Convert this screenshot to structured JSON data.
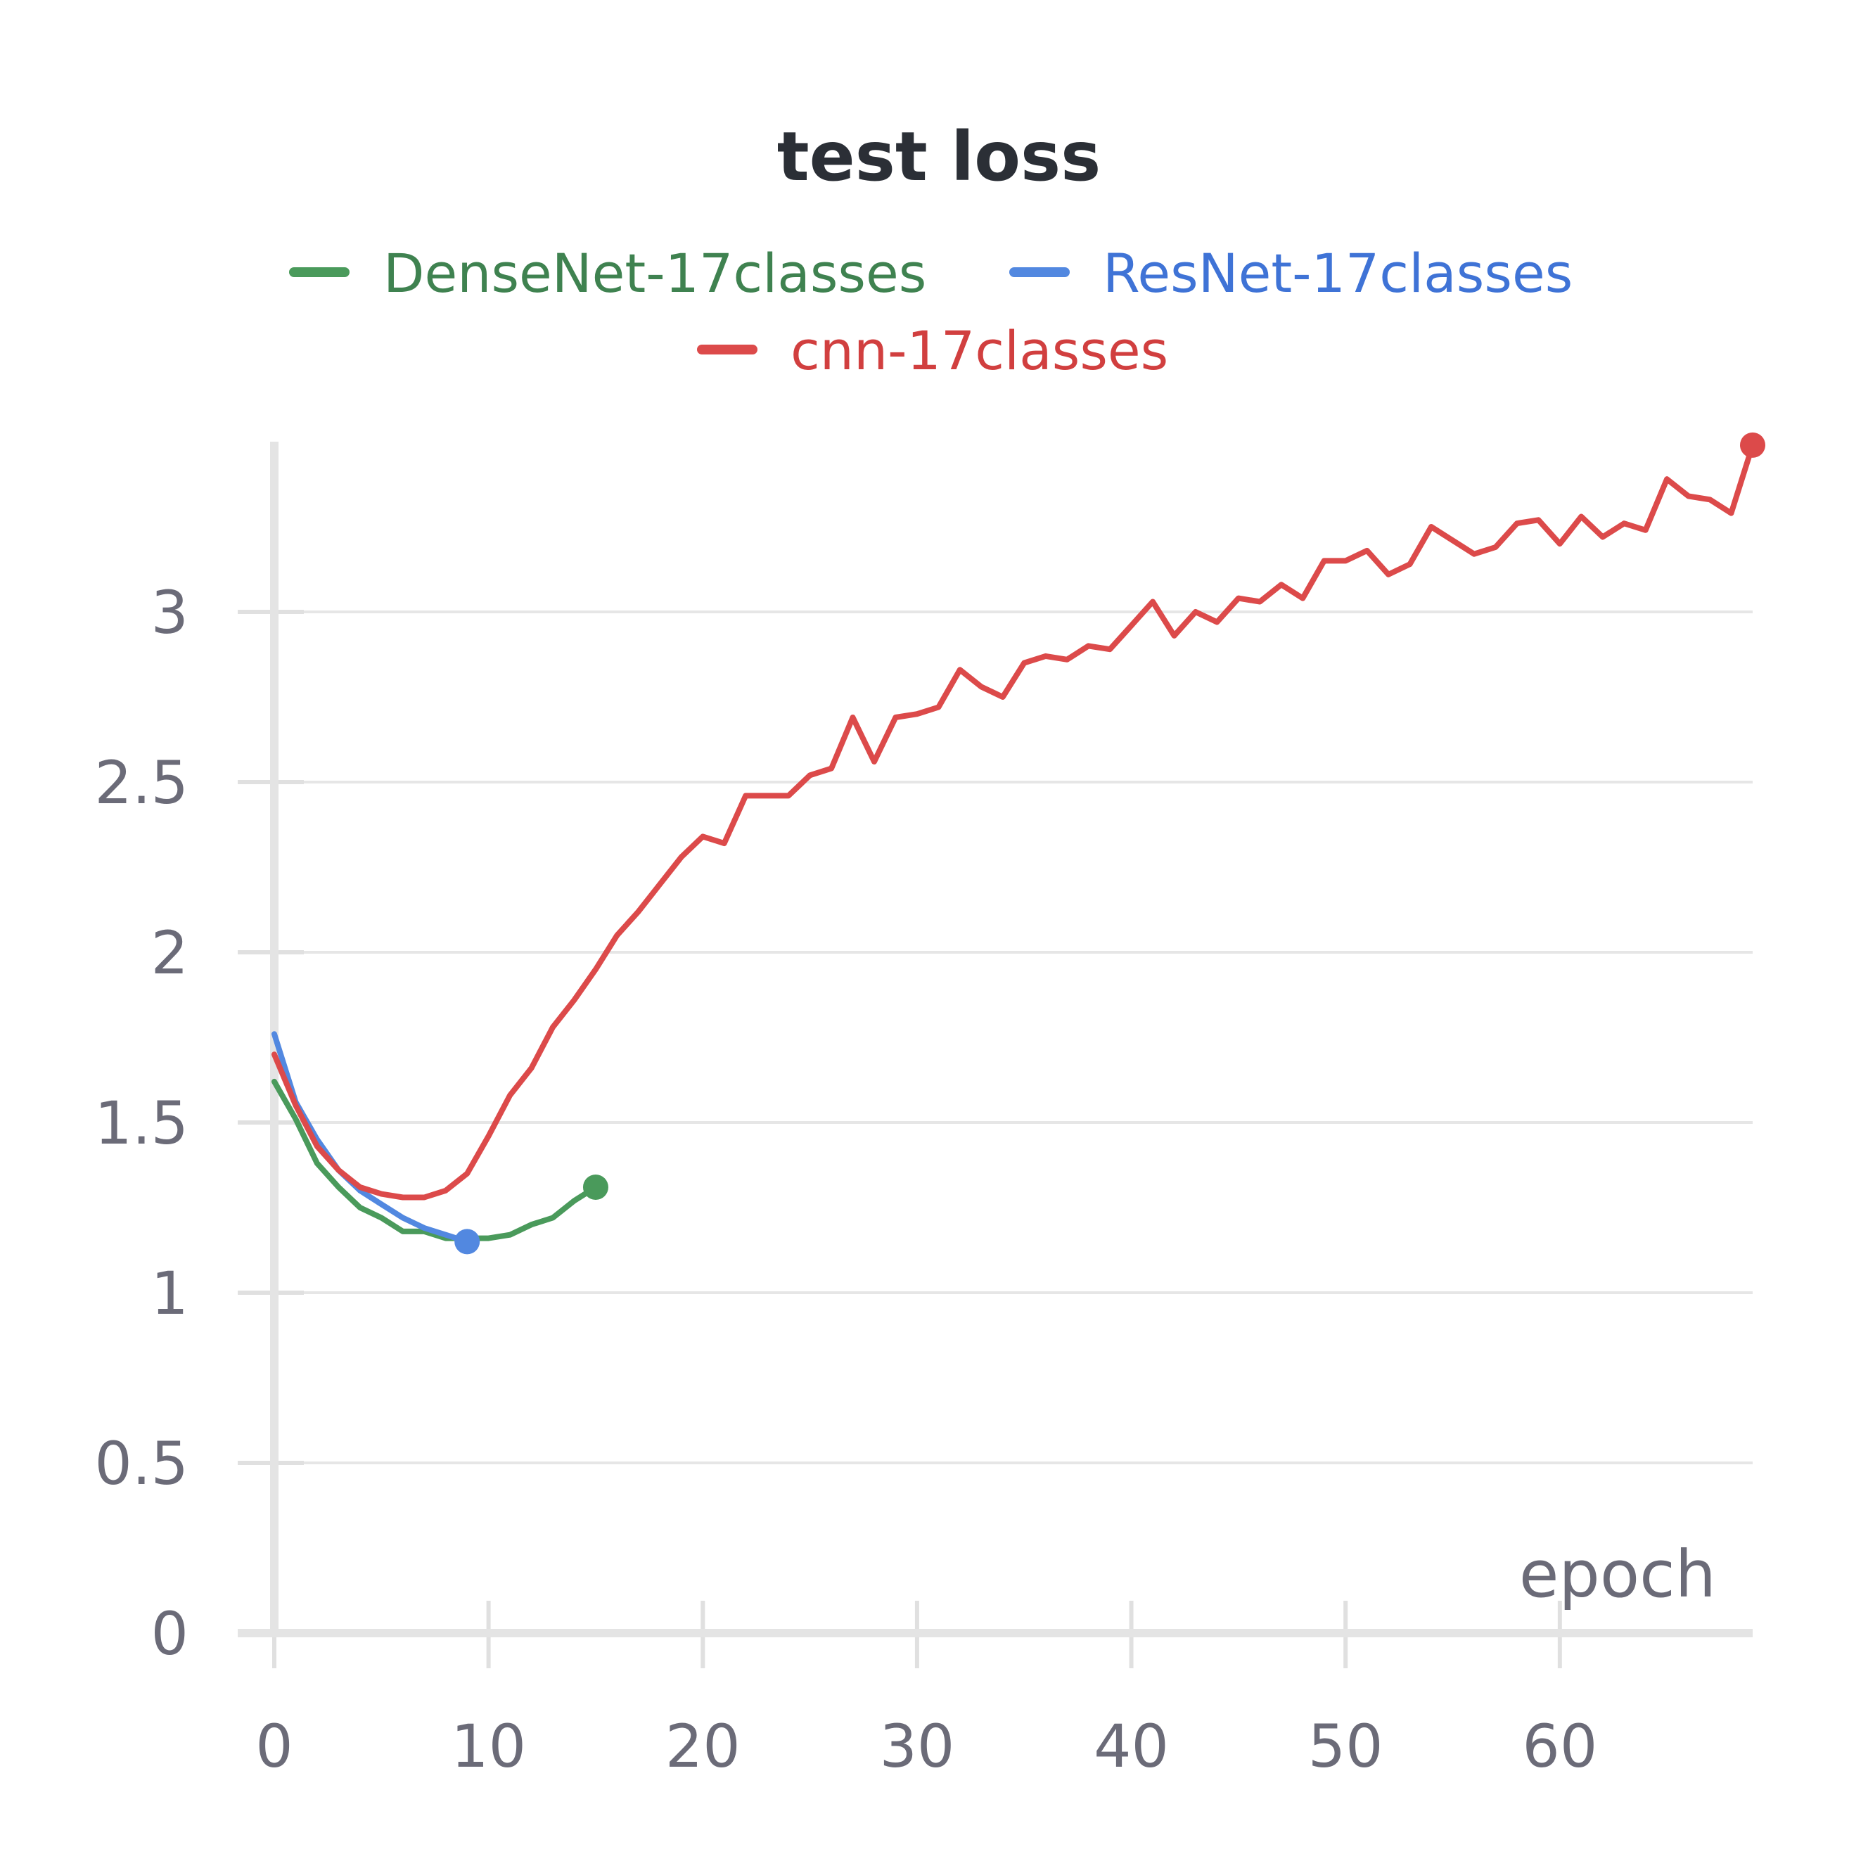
{
  "chart_data": {
    "type": "line",
    "title": "test loss",
    "xlabel": "epoch",
    "ylabel": "",
    "xlim": [
      0,
      69
    ],
    "ylim": [
      0,
      3.5
    ],
    "x_ticks": [
      "0",
      "10",
      "20",
      "30",
      "40",
      "50",
      "60"
    ],
    "y_ticks": [
      "0",
      "0.5",
      "1",
      "1.5",
      "2",
      "2.5",
      "3"
    ],
    "grid": true,
    "legend_position": "top",
    "series": [
      {
        "name": "DenseNet-17classes",
        "color": "#4a9a5b",
        "text_color": "#3f8250",
        "x": [
          0,
          1,
          2,
          3,
          4,
          5,
          6,
          7,
          8,
          9,
          10,
          11,
          12,
          13,
          14,
          15
        ],
        "y": [
          1.62,
          1.51,
          1.38,
          1.31,
          1.25,
          1.22,
          1.18,
          1.18,
          1.16,
          1.16,
          1.16,
          1.17,
          1.2,
          1.22,
          1.27,
          1.31
        ]
      },
      {
        "name": "ResNet-17classes",
        "color": "#5288e0",
        "text_color": "#3f73d6",
        "x": [
          0,
          1,
          2,
          3,
          4,
          5,
          6,
          7,
          8,
          9
        ],
        "y": [
          1.76,
          1.56,
          1.45,
          1.36,
          1.3,
          1.26,
          1.22,
          1.19,
          1.17,
          1.15
        ]
      },
      {
        "name": "cnn-17classes",
        "color": "#dc4a4a",
        "text_color": "#d13f3f",
        "x": [
          0,
          1,
          2,
          3,
          4,
          5,
          6,
          7,
          8,
          9,
          10,
          11,
          12,
          13,
          14,
          15,
          16,
          17,
          18,
          19,
          20,
          21,
          22,
          23,
          24,
          25,
          26,
          27,
          28,
          29,
          30,
          31,
          32,
          33,
          34,
          35,
          36,
          37,
          38,
          39,
          40,
          41,
          42,
          43,
          44,
          45,
          46,
          47,
          48,
          49,
          50,
          51,
          52,
          53,
          54,
          55,
          56,
          57,
          58,
          59,
          60,
          61,
          62,
          63,
          64,
          65,
          66,
          67,
          68,
          69
        ],
        "y": [
          1.7,
          1.55,
          1.43,
          1.36,
          1.31,
          1.29,
          1.28,
          1.28,
          1.3,
          1.35,
          1.46,
          1.58,
          1.66,
          1.78,
          1.86,
          1.95,
          2.05,
          2.12,
          2.2,
          2.28,
          2.34,
          2.32,
          2.46,
          2.46,
          2.46,
          2.52,
          2.54,
          2.69,
          2.56,
          2.69,
          2.7,
          2.72,
          2.83,
          2.78,
          2.75,
          2.85,
          2.87,
          2.86,
          2.9,
          2.89,
          2.96,
          3.03,
          2.93,
          3.0,
          2.97,
          3.04,
          3.03,
          3.08,
          3.04,
          3.15,
          3.15,
          3.18,
          3.11,
          3.14,
          3.25,
          3.21,
          3.17,
          3.19,
          3.26,
          3.27,
          3.2,
          3.28,
          3.22,
          3.26,
          3.24,
          3.39,
          3.34,
          3.33,
          3.29,
          3.49
        ]
      }
    ]
  }
}
